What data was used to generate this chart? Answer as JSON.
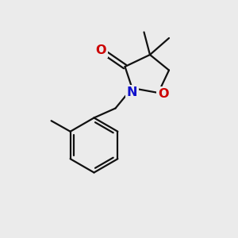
{
  "background_color": "#ebebeb",
  "atom_colors": {
    "N": "#1010cc",
    "O": "#cc0000"
  },
  "lw": 1.6,
  "fs": 11.5
}
